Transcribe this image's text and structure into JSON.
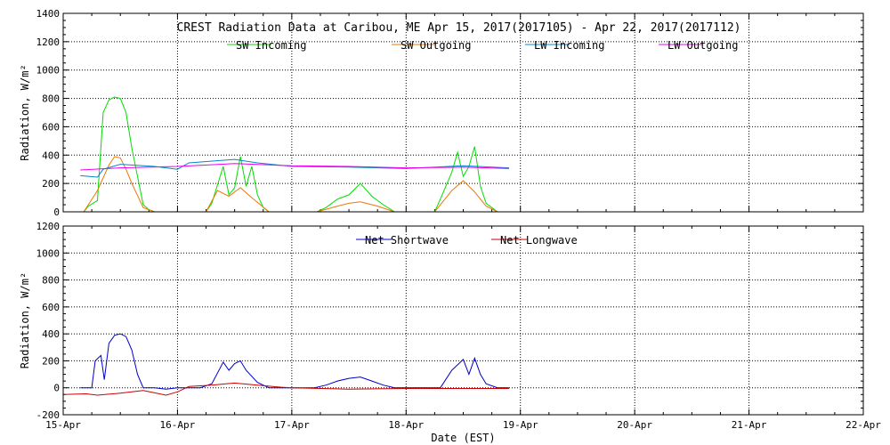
{
  "chart_data": [
    {
      "type": "line",
      "title": "CREST Radiation Data at Caribou, ME   Apr 15, 2017(2017105) - Apr 22, 2017(2017112)",
      "xlabel": "",
      "ylabel": "Radiation, W/m^2",
      "ylim": [
        0,
        1400
      ],
      "yticks": [
        0,
        200,
        400,
        600,
        800,
        1000,
        1200,
        1400
      ],
      "xlim": [
        0,
        7
      ],
      "xticks": [
        0,
        1,
        2,
        3,
        4,
        5,
        6,
        7
      ],
      "grid": true,
      "legend_position": "top",
      "series": [
        {
          "name": "SW Incoming",
          "color": "#00dd00",
          "x": [
            0.18,
            0.22,
            0.3,
            0.35,
            0.4,
            0.45,
            0.5,
            0.55,
            0.6,
            0.65,
            0.7,
            0.75,
            0.8,
            1.25,
            1.3,
            1.4,
            1.45,
            1.5,
            1.55,
            1.6,
            1.65,
            1.7,
            1.75,
            1.8,
            2.22,
            2.3,
            2.4,
            2.5,
            2.6,
            2.7,
            2.8,
            2.9,
            3.25,
            3.3,
            3.4,
            3.45,
            3.5,
            3.55,
            3.6,
            3.65,
            3.7,
            3.8
          ],
          "y": [
            0,
            40,
            80,
            700,
            790,
            810,
            800,
            700,
            450,
            250,
            50,
            15,
            0,
            0,
            60,
            320,
            120,
            170,
            390,
            180,
            320,
            120,
            30,
            0,
            0,
            30,
            90,
            120,
            200,
            110,
            50,
            0,
            0,
            90,
            280,
            420,
            250,
            320,
            460,
            180,
            60,
            0
          ]
        },
        {
          "name": "SW Outgoing",
          "color": "#ee7700",
          "x": [
            0.18,
            0.3,
            0.4,
            0.45,
            0.5,
            0.55,
            0.6,
            0.7,
            0.8,
            1.25,
            1.35,
            1.45,
            1.55,
            1.65,
            1.8,
            2.22,
            2.4,
            2.5,
            2.6,
            2.75,
            2.9,
            3.25,
            3.4,
            3.5,
            3.6,
            3.7,
            3.8
          ],
          "y": [
            0,
            150,
            330,
            390,
            380,
            300,
            200,
            30,
            0,
            0,
            150,
            110,
            170,
            100,
            0,
            0,
            40,
            60,
            70,
            40,
            0,
            0,
            150,
            220,
            140,
            40,
            0
          ]
        },
        {
          "name": "LW Incoming",
          "color": "#0088cc",
          "x": [
            0.15,
            0.3,
            0.35,
            0.5,
            0.8,
            1.0,
            1.1,
            1.5,
            1.7,
            2.0,
            2.5,
            3.0,
            3.5,
            3.9
          ],
          "y": [
            255,
            245,
            300,
            335,
            320,
            300,
            345,
            370,
            345,
            320,
            315,
            305,
            325,
            310
          ]
        },
        {
          "name": "LW Outgoing",
          "color": "#ee00ee",
          "x": [
            0.15,
            0.5,
            1.0,
            1.5,
            2.0,
            2.5,
            3.0,
            3.5,
            3.9
          ],
          "y": [
            295,
            310,
            320,
            340,
            325,
            320,
            310,
            315,
            305
          ]
        }
      ]
    },
    {
      "type": "line",
      "title": "",
      "xlabel": "Date (EST)",
      "ylabel": "Radiation, W/m^2",
      "ylim": [
        -200,
        1200
      ],
      "yticks": [
        -200,
        0,
        200,
        400,
        600,
        800,
        1000,
        1200
      ],
      "xlim": [
        0,
        7
      ],
      "xticks": [
        0,
        1,
        2,
        3,
        4,
        5,
        6,
        7
      ],
      "categories": [
        "15-Apr",
        "16-Apr",
        "17-Apr",
        "18-Apr",
        "19-Apr",
        "20-Apr",
        "21-Apr",
        "22-Apr"
      ],
      "grid": true,
      "legend_position": "top",
      "series": [
        {
          "name": "Net Shortwave",
          "color": "#0000cc",
          "x": [
            0.15,
            0.25,
            0.28,
            0.33,
            0.36,
            0.4,
            0.45,
            0.5,
            0.55,
            0.6,
            0.65,
            0.7,
            0.8,
            0.9,
            1.0,
            1.2,
            1.3,
            1.4,
            1.45,
            1.5,
            1.55,
            1.6,
            1.7,
            1.8,
            2.2,
            2.3,
            2.4,
            2.5,
            2.6,
            2.7,
            2.8,
            2.9,
            3.3,
            3.4,
            3.5,
            3.55,
            3.6,
            3.65,
            3.7,
            3.8,
            3.9
          ],
          "y": [
            0,
            0,
            200,
            240,
            60,
            330,
            390,
            400,
            380,
            280,
            100,
            0,
            0,
            -10,
            0,
            0,
            30,
            190,
            130,
            180,
            200,
            130,
            40,
            0,
            0,
            20,
            50,
            70,
            80,
            50,
            20,
            0,
            0,
            130,
            210,
            100,
            220,
            100,
            30,
            0,
            0
          ]
        },
        {
          "name": "Net Longwave",
          "color": "#cc0000",
          "x": [
            0.0,
            0.2,
            0.3,
            0.5,
            0.7,
            0.9,
            1.0,
            1.1,
            1.3,
            1.5,
            1.7,
            1.9,
            2.0,
            2.5,
            3.0,
            3.5,
            3.9
          ],
          "y": [
            -50,
            -45,
            -55,
            -40,
            -20,
            -55,
            -30,
            10,
            20,
            35,
            20,
            5,
            0,
            -10,
            -5,
            -5,
            -5
          ]
        }
      ]
    }
  ]
}
